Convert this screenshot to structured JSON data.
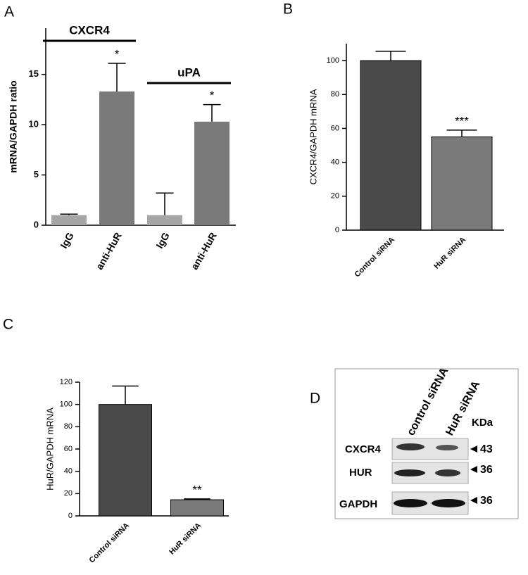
{
  "chart_data": [
    {
      "type": "bar",
      "label": "A",
      "ylabel": "mRNA/GAPDH ratio",
      "categories": [
        "IgG",
        "anti-HuR",
        "IgG",
        "anti-HuR"
      ],
      "groups": [
        "CXCR4",
        "CXCR4",
        "uPA",
        "uPA"
      ],
      "values": [
        1,
        13.3,
        1,
        10.3
      ],
      "errors": [
        0.1,
        2.8,
        2.2,
        1.7
      ],
      "significance": [
        null,
        "*",
        null,
        "*"
      ],
      "colors": [
        "#a6a6a6",
        "#7a7a7a",
        "#a6a6a6",
        "#7a7a7a"
      ],
      "ylim": [
        0,
        19.6
      ],
      "yticks": [
        0,
        5,
        10,
        15
      ]
    },
    {
      "type": "bar",
      "label": "B",
      "ylabel": "CXCR4/GAPDH mRNA",
      "categories": [
        "Control siRNA",
        "HuR siRNA"
      ],
      "values": [
        100,
        55
      ],
      "errors": [
        5.5,
        4
      ],
      "significance": [
        null,
        "***"
      ],
      "colors": [
        "#4a4a4a",
        "#7a7a7a"
      ],
      "ylim": [
        0,
        110
      ],
      "yticks": [
        0,
        20,
        40,
        60,
        80,
        100
      ]
    },
    {
      "type": "bar",
      "label": "C",
      "ylabel": "HuR/GAPDH mRNA",
      "categories": [
        "Control siRNA",
        "HuR siRNA"
      ],
      "values": [
        100,
        14.5
      ],
      "errors": [
        16.5,
        0.7
      ],
      "significance": [
        null,
        "**"
      ],
      "colors": [
        "#4a4a4a",
        "#7a7a7a"
      ],
      "ylim": [
        0,
        120
      ],
      "yticks": [
        0,
        20,
        40,
        60,
        80,
        100,
        120
      ]
    }
  ],
  "blot": {
    "label": "D",
    "lanes": [
      "control siRNA",
      "HuR siRNA"
    ],
    "unit": "KDa",
    "rows": [
      {
        "name": "CXCR4",
        "size": 43
      },
      {
        "name": "HUR",
        "size": 36
      },
      {
        "name": "GAPDH",
        "size": 36
      }
    ]
  }
}
